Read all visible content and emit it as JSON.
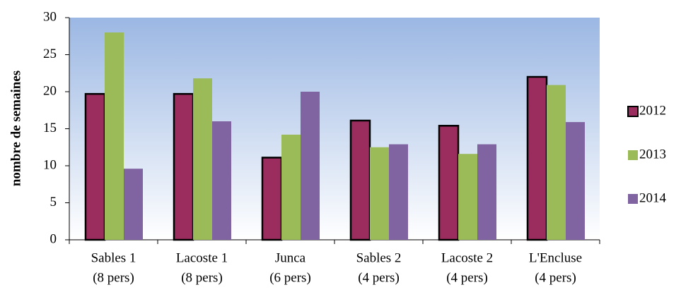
{
  "chart_data": {
    "type": "bar",
    "y_label": "nombre de semaines",
    "categories": [
      [
        "Sables 1",
        "(8 pers)"
      ],
      [
        "Lacoste 1",
        "(8 pers)"
      ],
      [
        "Junca",
        "(6 pers)"
      ],
      [
        "Sables 2",
        "(4 pers)"
      ],
      [
        "Lacoste 2",
        "(4 pers)"
      ],
      [
        "L'Encluse",
        "(4 pers)"
      ]
    ],
    "series": [
      {
        "name": "2012",
        "color": "#9b2d5e",
        "values": [
          19.7,
          19.7,
          11.1,
          16.1,
          15.4,
          22.0
        ]
      },
      {
        "name": "2013",
        "color": "#9bbb59",
        "values": [
          28.0,
          21.8,
          14.2,
          12.5,
          11.6,
          20.9
        ]
      },
      {
        "name": "2014",
        "color": "#8064a2",
        "values": [
          9.6,
          16.0,
          20.0,
          12.9,
          12.9,
          15.9
        ]
      }
    ],
    "ylim": [
      0,
      30
    ],
    "yticks": [
      0,
      5,
      10,
      15,
      20,
      25,
      30
    ],
    "legend": "right"
  }
}
